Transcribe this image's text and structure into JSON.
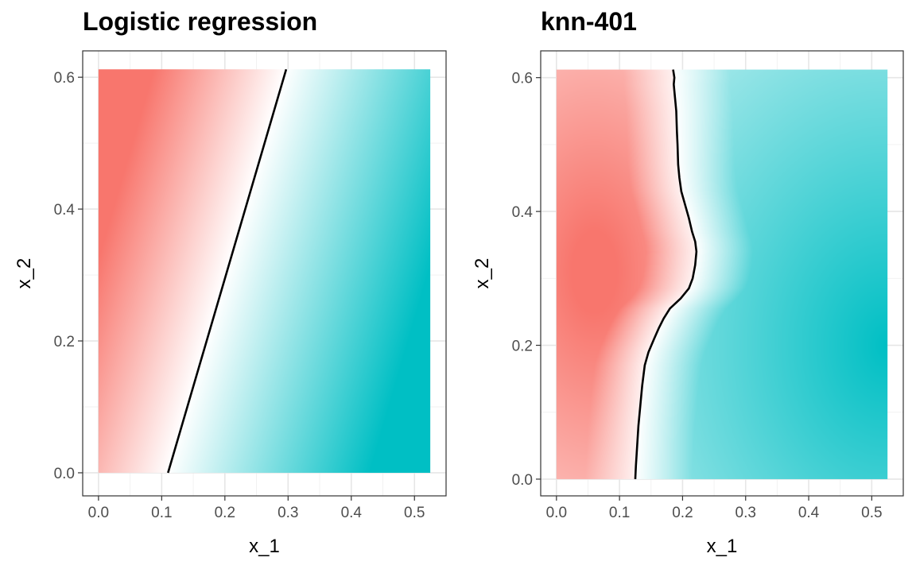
{
  "colors": {
    "class_a": "#F8766D",
    "class_b": "#00BFC4",
    "neutral": "#FFFFFF",
    "boundary": "#000000",
    "grid_major": "#e6e6e6",
    "grid_minor": "#f2f2f2",
    "panel_border": "#333333",
    "tick_text": "#4d4d4d"
  },
  "chart_data": [
    {
      "type": "heatmap",
      "title": "Logistic regression",
      "xlabel": "x_1",
      "ylabel": "x_2",
      "xlim": [
        -0.025,
        0.55
      ],
      "ylim": [
        -0.035,
        0.64
      ],
      "fill_extent": {
        "x": [
          0.0,
          0.525
        ],
        "y": [
          0.0,
          0.612
        ]
      },
      "x_ticks": [
        0.0,
        0.1,
        0.2,
        0.3,
        0.4,
        0.5
      ],
      "x_tick_labels": [
        "0.0",
        "0.1",
        "0.2",
        "0.3",
        "0.4",
        "0.5"
      ],
      "y_ticks": [
        0.0,
        0.2,
        0.4,
        0.6
      ],
      "y_tick_labels": [
        "0.0",
        "0.2",
        "0.4",
        "0.6"
      ],
      "grid": true,
      "legend": "none",
      "fill_model": "linear",
      "fill_stops": [
        {
          "score": -0.21,
          "prob": 0.0
        },
        {
          "score": 0.0,
          "prob": 0.5
        },
        {
          "score": 0.065,
          "prob": 0.6
        },
        {
          "score": 0.32,
          "prob": 1.0
        }
      ],
      "decision_boundary": {
        "x": [
          0.11,
          0.297
        ],
        "y": [
          0.0,
          0.612
        ]
      }
    },
    {
      "type": "heatmap",
      "title": "knn-401",
      "xlabel": "x_1",
      "ylabel": "x_2",
      "xlim": [
        -0.025,
        0.55
      ],
      "ylim": [
        -0.025,
        0.64
      ],
      "fill_extent": {
        "x": [
          0.0,
          0.525
        ],
        "y": [
          0.0,
          0.612
        ]
      },
      "x_ticks": [
        0.0,
        0.1,
        0.2,
        0.3,
        0.4,
        0.5
      ],
      "x_tick_labels": [
        "0.0",
        "0.1",
        "0.2",
        "0.3",
        "0.4",
        "0.5"
      ],
      "y_ticks": [
        0.0,
        0.2,
        0.4,
        0.6
      ],
      "y_tick_labels": [
        "0.0",
        "0.2",
        "0.4",
        "0.6"
      ],
      "grid": true,
      "legend": "none",
      "fill_model": "boundary-distance",
      "hot_spot": {
        "x": 0.06,
        "y": 0.31
      },
      "decision_boundary": {
        "x": [
          0.125,
          0.126,
          0.128,
          0.13,
          0.133,
          0.136,
          0.14,
          0.146,
          0.155,
          0.162,
          0.17,
          0.18,
          0.197,
          0.21,
          0.216,
          0.22,
          0.222,
          0.22,
          0.215,
          0.21,
          0.204,
          0.198,
          0.195,
          0.193,
          0.192,
          0.191,
          0.19,
          0.188,
          0.186,
          0.187,
          0.185
        ],
        "y": [
          0.0,
          0.02,
          0.05,
          0.08,
          0.11,
          0.14,
          0.17,
          0.19,
          0.21,
          0.225,
          0.24,
          0.255,
          0.27,
          0.285,
          0.3,
          0.32,
          0.34,
          0.355,
          0.37,
          0.39,
          0.41,
          0.43,
          0.45,
          0.47,
          0.5,
          0.52,
          0.55,
          0.57,
          0.59,
          0.6,
          0.612
        ]
      }
    }
  ]
}
